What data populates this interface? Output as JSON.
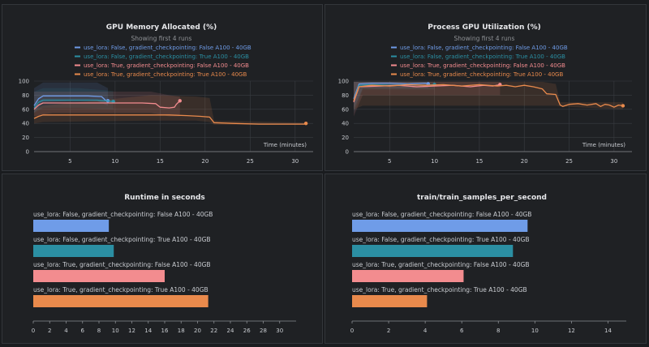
{
  "colors": {
    "s0": "#6f9ce8",
    "s1": "#2b8fa3",
    "s2": "#f38c8f",
    "s3": "#e98a4c",
    "grid": "#3a3d42",
    "axis": "#8a8d92",
    "text": "#c9ccd1",
    "title": "#e6e7ea",
    "subtitle": "#8f9296"
  },
  "chart_data": [
    {
      "type": "line",
      "title": "GPU Memory Allocated (%)",
      "subtitle": "Showing first 4 runs",
      "xlabel": "Time (minutes)",
      "ylabel": "",
      "xlim": [
        1,
        32
      ],
      "ylim": [
        0,
        100
      ],
      "xticks": [
        5,
        10,
        15,
        20,
        25,
        30
      ],
      "yticks": [
        0,
        20,
        40,
        60,
        80,
        100
      ],
      "series": [
        {
          "name": "use_lora: False, gradient_checkpointing: False A100 - 40GB",
          "points": [
            [
              1,
              65
            ],
            [
              1.5,
              75
            ],
            [
              2,
              79
            ],
            [
              4,
              79
            ],
            [
              7,
              79
            ],
            [
              8.5,
              78
            ],
            [
              9,
              72
            ],
            [
              9.2,
              72
            ]
          ],
          "band": [
            [
              1,
              55,
              90
            ],
            [
              2,
              70,
              98
            ],
            [
              5,
              72,
              98
            ],
            [
              8,
              72,
              98
            ],
            [
              9.2,
              65,
              90
            ]
          ]
        },
        {
          "name": "use_lora: False, gradient_checkpointing: True A100 - 40GB",
          "points": [
            [
              1,
              62
            ],
            [
              1.5,
              70
            ],
            [
              2,
              73
            ],
            [
              4,
              73
            ],
            [
              6,
              73
            ],
            [
              8,
              73
            ],
            [
              9,
              72
            ],
            [
              9.8,
              71
            ]
          ],
          "band": [
            [
              1,
              55,
              85
            ],
            [
              2,
              62,
              90
            ],
            [
              6,
              62,
              90
            ],
            [
              9.8,
              60,
              86
            ]
          ]
        },
        {
          "name": "use_lora: True, gradient_checkpointing: False A100 - 40GB",
          "points": [
            [
              1,
              60
            ],
            [
              1.5,
              66
            ],
            [
              2,
              69
            ],
            [
              10,
              69
            ],
            [
              13,
              69
            ],
            [
              14.5,
              68
            ],
            [
              15,
              63
            ],
            [
              16,
              62
            ],
            [
              16.6,
              63
            ],
            [
              16.8,
              67
            ],
            [
              17.2,
              72
            ]
          ],
          "band": [
            [
              1,
              50,
              85
            ],
            [
              3,
              55,
              85
            ],
            [
              10,
              55,
              85
            ],
            [
              14,
              55,
              85
            ],
            [
              16,
              50,
              80
            ],
            [
              17.2,
              50,
              78
            ]
          ]
        },
        {
          "name": "use_lora: True, gradient_checkpointing: True A100 - 40GB",
          "points": [
            [
              1,
              47
            ],
            [
              1.5,
              50
            ],
            [
              2,
              52
            ],
            [
              10,
              52
            ],
            [
              14,
              52
            ],
            [
              16,
              52
            ],
            [
              18,
              51
            ],
            [
              19.5,
              50
            ],
            [
              20.5,
              49
            ],
            [
              21,
              41
            ],
            [
              23,
              40
            ],
            [
              26,
              39
            ],
            [
              31,
              39
            ],
            [
              31.2,
              40
            ]
          ],
          "band": [
            [
              1,
              40,
              60
            ],
            [
              2,
              42,
              65
            ],
            [
              14,
              44,
              80
            ],
            [
              19,
              44,
              78
            ],
            [
              20.5,
              42,
              76
            ],
            [
              21,
              38,
              44
            ],
            [
              31.2,
              38,
              41
            ]
          ]
        }
      ]
    },
    {
      "type": "line",
      "title": "Process GPU Utilization (%)",
      "subtitle": "Showing first 4 runs",
      "xlabel": "Time (minutes)",
      "ylabel": "",
      "xlim": [
        1,
        32
      ],
      "ylim": [
        0,
        100
      ],
      "xticks": [
        5,
        10,
        15,
        20,
        25,
        30
      ],
      "yticks": [
        0,
        20,
        40,
        60,
        80,
        100
      ],
      "series": [
        {
          "name": "use_lora: False, gradient_checkpointing: False A100 - 40GB",
          "points": [
            [
              1,
              75
            ],
            [
              1.6,
              96
            ],
            [
              3,
              97
            ],
            [
              5,
              97
            ],
            [
              7,
              96
            ],
            [
              9,
              97
            ],
            [
              9.3,
              96
            ]
          ],
          "band": [
            [
              1,
              60,
              99
            ],
            [
              2,
              90,
              99
            ],
            [
              9.3,
              90,
              99
            ]
          ]
        },
        {
          "name": "use_lora: False, gradient_checkpointing: True A100 - 40GB",
          "points": [
            [
              1,
              72
            ],
            [
              1.6,
              94
            ],
            [
              3,
              95
            ],
            [
              5,
              94
            ],
            [
              7,
              95
            ],
            [
              9,
              94
            ],
            [
              10,
              95
            ]
          ],
          "band": [
            [
              1,
              55,
              99
            ],
            [
              2,
              88,
              99
            ],
            [
              10,
              88,
              99
            ]
          ]
        },
        {
          "name": "use_lora: True, gradient_checkpointing: False A100 - 40GB",
          "points": [
            [
              1,
              70
            ],
            [
              1.6,
              92
            ],
            [
              4,
              93
            ],
            [
              6,
              94
            ],
            [
              8,
              92
            ],
            [
              10,
              93
            ],
            [
              12,
              94
            ],
            [
              14,
              92
            ],
            [
              15.5,
              94
            ],
            [
              16.5,
              93
            ],
            [
              17.3,
              95
            ]
          ],
          "band": [
            [
              1,
              50,
              99
            ],
            [
              2,
              80,
              99
            ],
            [
              17.3,
              80,
              99
            ]
          ]
        },
        {
          "name": "use_lora: True, gradient_checkpointing: True A100 - 40GB",
          "points": [
            [
              1,
              72
            ],
            [
              1.6,
              92
            ],
            [
              3,
              94
            ],
            [
              5,
              93
            ],
            [
              7,
              95
            ],
            [
              9,
              94
            ],
            [
              11,
              95
            ],
            [
              13,
              93
            ],
            [
              15,
              95
            ],
            [
              17,
              93
            ],
            [
              18,
              94
            ],
            [
              19,
              92
            ],
            [
              20,
              94
            ],
            [
              21,
              92
            ],
            [
              22,
              89
            ],
            [
              22.5,
              82
            ],
            [
              23.5,
              81
            ],
            [
              24,
              66
            ],
            [
              24.3,
              64
            ],
            [
              25,
              67
            ],
            [
              26,
              68
            ],
            [
              27,
              66
            ],
            [
              28,
              68
            ],
            [
              28.5,
              64
            ],
            [
              29,
              67
            ],
            [
              29.5,
              66
            ],
            [
              30,
              63
            ],
            [
              30.5,
              66
            ],
            [
              31,
              65
            ]
          ],
          "band": [
            [
              1,
              60,
              99
            ],
            [
              2,
              65,
              99
            ],
            [
              22,
              65,
              99
            ],
            [
              23.5,
              65,
              96
            ],
            [
              24,
              64,
              70
            ],
            [
              31,
              60,
              70
            ]
          ]
        }
      ]
    },
    {
      "type": "bar",
      "orientation": "horizontal",
      "title": "Runtime in seconds",
      "xlim": [
        0,
        32
      ],
      "xticks": [
        0,
        2,
        4,
        6,
        8,
        10,
        12,
        14,
        16,
        18,
        20,
        22,
        24,
        26,
        28,
        30
      ],
      "categories": [
        "use_lora: False, gradient_checkpointing: False A100 - 40GB",
        "use_lora: False, gradient_checkpointing: True A100 - 40GB",
        "use_lora: True, gradient_checkpointing: False A100 - 40GB",
        "use_lora: True, gradient_checkpointing: True A100 - 40GB"
      ],
      "values": [
        9.2,
        9.8,
        16.0,
        21.3
      ]
    },
    {
      "type": "bar",
      "orientation": "horizontal",
      "title": "train/train_samples_per_second",
      "xlim": [
        0,
        15
      ],
      "xticks": [
        0,
        2,
        4,
        6,
        8,
        10,
        12,
        14
      ],
      "categories": [
        "use_lora: False, gradient_checkpointing: False A100 - 40GB",
        "use_lora: False, gradient_checkpointing: True A100 - 40GB",
        "use_lora: True, gradient_checkpointing: False A100 - 40GB",
        "use_lora: True, gradient_checkpointing: True A100 - 40GB"
      ],
      "values": [
        9.6,
        8.8,
        6.1,
        4.1
      ]
    }
  ]
}
